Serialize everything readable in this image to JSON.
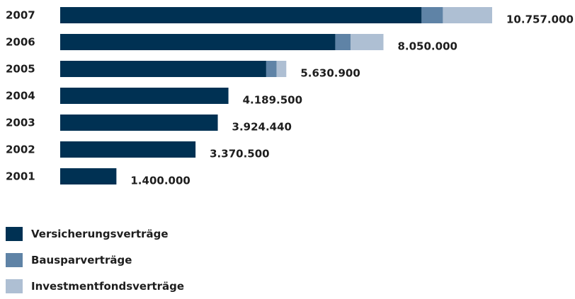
{
  "chart_data": {
    "type": "bar",
    "orientation": "horizontal",
    "stacked": true,
    "categories": [
      "2007",
      "2006",
      "2005",
      "2004",
      "2003",
      "2002",
      "2001"
    ],
    "series": [
      {
        "name": "Versicherungsverträge",
        "color": "#003153",
        "values": [
          9000000,
          6850000,
          5130000,
          4189500,
          3924440,
          3370500,
          1400000
        ]
      },
      {
        "name": "Bausparverträge",
        "color": "#5f83a6",
        "values": [
          530000,
          380000,
          260000,
          0,
          0,
          0,
          0
        ]
      },
      {
        "name": "Investmentfondsverträge",
        "color": "#aebfd3",
        "values": [
          1227000,
          820000,
          240900,
          0,
          0,
          0,
          0
        ]
      }
    ],
    "totals_labels": [
      "10.757.000",
      "8.050.000",
      "5.630.900",
      "4.189.500",
      "3.924.440",
      "3.370.500",
      "1.400.000"
    ],
    "xlim": [
      0,
      12000000
    ],
    "grid": false,
    "legend_position": "bottom-left"
  }
}
